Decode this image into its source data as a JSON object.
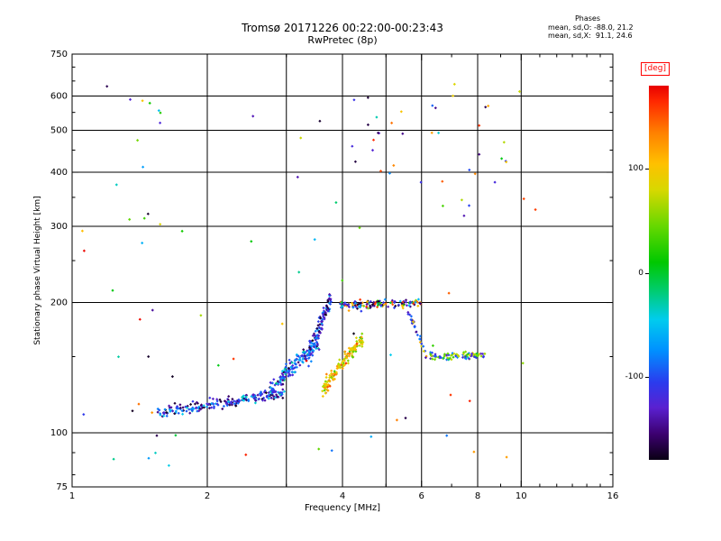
{
  "chart_data": {
    "type": "scatter",
    "title": "Tromsø 20171226 00:22:00-00:23:43",
    "subtitle": "RwPretec (8p)",
    "xlabel": "Frequency [MHz]",
    "ylabel": "Stationary phase Virtual Height [km]",
    "x_scale": "log",
    "y_scale": "log",
    "xlim": [
      1,
      16
    ],
    "ylim": [
      75,
      750
    ],
    "x_ticks": [
      1,
      2,
      4,
      6,
      8,
      10,
      16
    ],
    "y_ticks": [
      75,
      100,
      200,
      300,
      400,
      500,
      600,
      750
    ],
    "x_gridlines": [
      2,
      3,
      4,
      5,
      6,
      8,
      10
    ],
    "y_gridlines": [
      100,
      200,
      300,
      400,
      500,
      600
    ],
    "x_minor_ticks": [
      3,
      5,
      7,
      9,
      11,
      12,
      13,
      14,
      15
    ],
    "y_minor_ticks": [
      80,
      90,
      150,
      250,
      350,
      450,
      550,
      650,
      700
    ],
    "grid": true,
    "legend_position": "none",
    "stats": {
      "header": "Phases",
      "mean_sd_O": "mean, sd,O: -88.0, 21.2",
      "mean_sd_X": "mean, sd,X:  91.1, 24.6"
    },
    "color_scale": {
      "label": "[deg]",
      "min": -180,
      "max": 180,
      "ticks": [
        -100,
        0,
        100
      ],
      "stops": [
        {
          "v": -180,
          "c": "#0a0014"
        },
        {
          "v": -155,
          "c": "#3c0070"
        },
        {
          "v": -130,
          "c": "#5a20d0"
        },
        {
          "v": -105,
          "c": "#2a3cee"
        },
        {
          "v": -75,
          "c": "#0090ff"
        },
        {
          "v": -45,
          "c": "#00ccee"
        },
        {
          "v": -15,
          "c": "#00cc66"
        },
        {
          "v": 10,
          "c": "#00c800"
        },
        {
          "v": 45,
          "c": "#66d800"
        },
        {
          "v": 80,
          "c": "#d8d800"
        },
        {
          "v": 105,
          "c": "#ffc000"
        },
        {
          "v": 135,
          "c": "#ff8000"
        },
        {
          "v": 165,
          "c": "#ff2800"
        },
        {
          "v": 180,
          "c": "#e80000"
        }
      ]
    },
    "point_style": {
      "shape": "diamond",
      "size": 3.2
    },
    "seed": 20171226,
    "clusters": [
      {
        "name": "e-layer-band",
        "count": 210,
        "f_range": [
          1.55,
          2.95
        ],
        "h_trend": [
          111,
          123
        ],
        "h_spread": 5,
        "phase_mix": [
          {
            "range": [
              -145,
              -75
            ],
            "w": 0.55
          },
          {
            "range": [
              -180,
              -145
            ],
            "w": 0.27
          },
          {
            "range": [
              -75,
              -30
            ],
            "w": 0.18
          }
        ]
      },
      {
        "name": "rising-segment",
        "count": 150,
        "f_range": [
          2.75,
          3.55
        ],
        "h_trend": [
          124,
          162
        ],
        "h_spread": 9,
        "phase_mix": [
          {
            "range": [
              -140,
              -60
            ],
            "w": 0.7
          },
          {
            "range": [
              -180,
              -140
            ],
            "w": 0.12
          },
          {
            "range": [
              -55,
              -15
            ],
            "w": 0.18
          }
        ]
      },
      {
        "name": "dark-vertical-blob",
        "count": 115,
        "f_range": [
          3.35,
          3.78
        ],
        "h_trend": [
          148,
          205
        ],
        "h_spread": 14,
        "phase_mix": [
          {
            "range": [
              -180,
              -115
            ],
            "w": 0.55
          },
          {
            "range": [
              -115,
              -60
            ],
            "w": 0.45
          }
        ]
      },
      {
        "name": "yellow-trace",
        "count": 150,
        "f_range": [
          3.6,
          4.45
        ],
        "h_trend": [
          124,
          166
        ],
        "h_spread": 8,
        "phase_mix": [
          {
            "range": [
              55,
              130
            ],
            "w": 0.72
          },
          {
            "range": [
              10,
              55
            ],
            "w": 0.14
          },
          {
            "range": [
              130,
              165
            ],
            "w": 0.14
          }
        ]
      },
      {
        "name": "f-band-200km",
        "count": 140,
        "f_range": [
          3.95,
          6.0
        ],
        "h_trend": [
          197,
          200
        ],
        "h_spread": 7,
        "phase_mix": [
          {
            "range": [
              -180,
              -110
            ],
            "w": 0.42
          },
          {
            "range": [
              95,
              175
            ],
            "w": 0.28
          },
          {
            "range": [
              -110,
              -45
            ],
            "w": 0.16
          },
          {
            "range": [
              -15,
              60
            ],
            "w": 0.14
          }
        ]
      },
      {
        "name": "descending-tail",
        "count": 32,
        "f_range": [
          5.5,
          6.15
        ],
        "h_trend": [
          196,
          152
        ],
        "h_spread": 5,
        "phase_mix": [
          {
            "range": [
              -150,
              -75
            ],
            "w": 0.75
          },
          {
            "range": [
              55,
              120
            ],
            "w": 0.25
          }
        ]
      },
      {
        "name": "band-150km",
        "count": 90,
        "f_range": [
          6.25,
          8.3
        ],
        "h_trend": [
          150,
          151
        ],
        "h_spread": 4,
        "phase_mix": [
          {
            "range": [
              -135,
              -75
            ],
            "w": 0.45
          },
          {
            "range": [
              30,
              105
            ],
            "w": 0.45
          },
          {
            "range": [
              -40,
              10
            ],
            "w": 0.1
          }
        ]
      },
      {
        "name": "sparse-scatter",
        "count": 55,
        "f_range": [
          1.05,
          11.5
        ],
        "h_log_range": [
          85,
          640
        ],
        "phase_mix": [
          {
            "range": [
              -180,
              180
            ],
            "w": 1
          }
        ]
      },
      {
        "name": "left-column-scatter",
        "count": 16,
        "f_range": [
          1.2,
          1.6
        ],
        "h_log_range": [
          95,
          640
        ],
        "phase_mix": [
          {
            "range": [
              -180,
              180
            ],
            "w": 1
          }
        ]
      },
      {
        "name": "upper-right-scatter",
        "count": 18,
        "f_range": [
          5.8,
          10.3
        ],
        "h_log_range": [
          290,
          620
        ],
        "phase_mix": [
          {
            "range": [
              -180,
              -90
            ],
            "w": 0.4
          },
          {
            "range": [
              60,
              170
            ],
            "w": 0.6
          }
        ]
      },
      {
        "name": "upper-mid-scatter",
        "count": 12,
        "f_range": [
          4.0,
          5.3
        ],
        "h_log_range": [
          380,
          600
        ],
        "phase_mix": [
          {
            "range": [
              -180,
              -100
            ],
            "w": 0.5
          },
          {
            "range": [
              90,
              175
            ],
            "w": 0.5
          }
        ]
      },
      {
        "name": "low-scatter",
        "count": 8,
        "f_range": [
          1.3,
          10.0
        ],
        "h_log_range": [
          83,
          99
        ],
        "phase_mix": [
          {
            "range": [
              -180,
              180
            ],
            "w": 1
          }
        ]
      }
    ]
  }
}
